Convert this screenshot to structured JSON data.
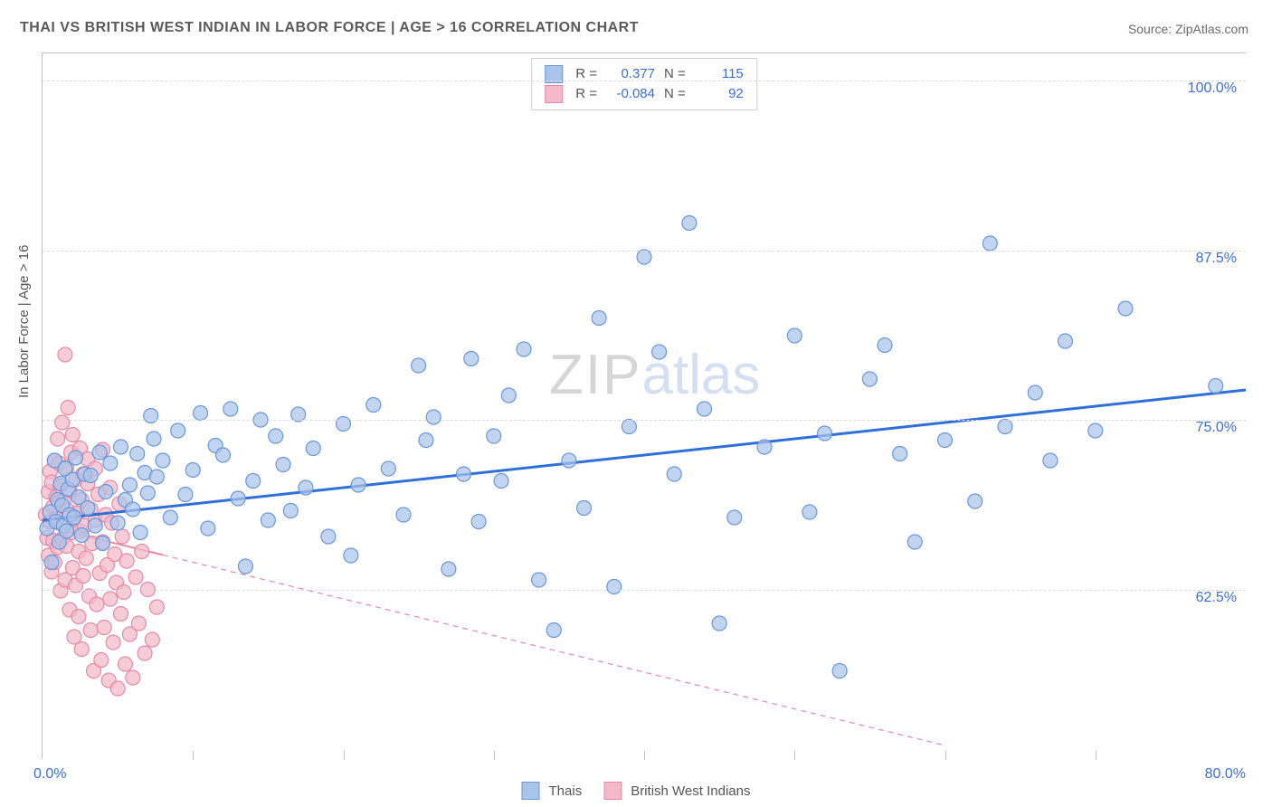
{
  "title": "THAI VS BRITISH WEST INDIAN IN LABOR FORCE | AGE > 16 CORRELATION CHART",
  "source": "Source: ZipAtlas.com",
  "watermark_zip": "ZIP",
  "watermark_atlas": "atlas",
  "yaxis_title": "In Labor Force | Age > 16",
  "chart": {
    "type": "scatter",
    "xlim": [
      0,
      80
    ],
    "ylim": [
      50,
      102
    ],
    "x_label_min": "0.0%",
    "x_label_max": "80.0%",
    "y_ticks": [
      62.5,
      75.0,
      87.5,
      100.0
    ],
    "y_tick_labels": [
      "62.5%",
      "75.0%",
      "87.5%",
      "100.0%"
    ],
    "x_ticks": [
      10,
      20,
      30,
      40,
      50,
      60,
      70
    ],
    "background_color": "#ffffff",
    "grid_color": "#dcdcdc",
    "series": [
      {
        "name": "Thais",
        "R": "0.377",
        "N": "115",
        "color_fill": "#a9c4ea",
        "color_stroke": "#6a97d8",
        "marker_radius": 8,
        "fill_opacity": 0.72,
        "trend_color": "#2f6fd8",
        "trend_width": 3,
        "trend_dash": "",
        "trend": {
          "x1": 0,
          "y1": 67.6,
          "x2": 80,
          "y2": 77.2
        },
        "points": [
          [
            0.3,
            67.0
          ],
          [
            0.5,
            68.2
          ],
          [
            0.6,
            64.5
          ],
          [
            0.8,
            72.0
          ],
          [
            0.9,
            67.5
          ],
          [
            1.0,
            69.1
          ],
          [
            1.1,
            66.0
          ],
          [
            1.2,
            70.3
          ],
          [
            1.3,
            68.7
          ],
          [
            1.4,
            67.2
          ],
          [
            1.5,
            71.4
          ],
          [
            1.6,
            66.8
          ],
          [
            1.7,
            69.9
          ],
          [
            1.8,
            68.0
          ],
          [
            2.0,
            70.6
          ],
          [
            2.1,
            67.8
          ],
          [
            2.2,
            72.2
          ],
          [
            2.4,
            69.3
          ],
          [
            2.6,
            66.5
          ],
          [
            2.8,
            71.0
          ],
          [
            3.0,
            68.5
          ],
          [
            3.2,
            70.9
          ],
          [
            3.5,
            67.2
          ],
          [
            3.8,
            72.6
          ],
          [
            4.0,
            65.9
          ],
          [
            4.2,
            69.7
          ],
          [
            4.5,
            71.8
          ],
          [
            5.0,
            67.4
          ],
          [
            5.2,
            73.0
          ],
          [
            5.5,
            69.1
          ],
          [
            5.8,
            70.2
          ],
          [
            6.0,
            68.4
          ],
          [
            6.3,
            72.5
          ],
          [
            6.5,
            66.7
          ],
          [
            6.8,
            71.1
          ],
          [
            7.0,
            69.6
          ],
          [
            7.2,
            75.3
          ],
          [
            7.4,
            73.6
          ],
          [
            7.6,
            70.8
          ],
          [
            8.0,
            72.0
          ],
          [
            8.5,
            67.8
          ],
          [
            9.0,
            74.2
          ],
          [
            9.5,
            69.5
          ],
          [
            10.0,
            71.3
          ],
          [
            10.5,
            75.5
          ],
          [
            11.0,
            67.0
          ],
          [
            11.5,
            73.1
          ],
          [
            12.0,
            72.4
          ],
          [
            12.5,
            75.8
          ],
          [
            13.0,
            69.2
          ],
          [
            13.5,
            64.2
          ],
          [
            14.0,
            70.5
          ],
          [
            14.5,
            75.0
          ],
          [
            15.0,
            67.6
          ],
          [
            15.5,
            73.8
          ],
          [
            16.0,
            71.7
          ],
          [
            16.5,
            68.3
          ],
          [
            17.0,
            75.4
          ],
          [
            17.5,
            70.0
          ],
          [
            18.0,
            72.9
          ],
          [
            19.0,
            66.4
          ],
          [
            20.0,
            74.7
          ],
          [
            20.5,
            65.0
          ],
          [
            21.0,
            70.2
          ],
          [
            22.0,
            76.1
          ],
          [
            23.0,
            71.4
          ],
          [
            24.0,
            68.0
          ],
          [
            25.0,
            79.0
          ],
          [
            25.5,
            73.5
          ],
          [
            26.0,
            75.2
          ],
          [
            27.0,
            64.0
          ],
          [
            28.0,
            71.0
          ],
          [
            28.5,
            79.5
          ],
          [
            29.0,
            67.5
          ],
          [
            30.0,
            73.8
          ],
          [
            30.5,
            70.5
          ],
          [
            31.0,
            76.8
          ],
          [
            32.0,
            80.2
          ],
          [
            33.0,
            63.2
          ],
          [
            34.0,
            59.5
          ],
          [
            35.0,
            72.0
          ],
          [
            36.0,
            68.5
          ],
          [
            37.0,
            82.5
          ],
          [
            38.0,
            62.7
          ],
          [
            39.0,
            74.5
          ],
          [
            40.0,
            87.0
          ],
          [
            41.0,
            80.0
          ],
          [
            42.0,
            71.0
          ],
          [
            43.0,
            89.5
          ],
          [
            44.0,
            75.8
          ],
          [
            45.0,
            60.0
          ],
          [
            46.0,
            67.8
          ],
          [
            48.0,
            73.0
          ],
          [
            50.0,
            81.2
          ],
          [
            51.0,
            68.2
          ],
          [
            52.0,
            74.0
          ],
          [
            53.0,
            56.5
          ],
          [
            55.0,
            78.0
          ],
          [
            56.0,
            80.5
          ],
          [
            57.0,
            72.5
          ],
          [
            58.0,
            66.0
          ],
          [
            60.0,
            73.5
          ],
          [
            62.0,
            69.0
          ],
          [
            63.0,
            88.0
          ],
          [
            64.0,
            74.5
          ],
          [
            66.0,
            77.0
          ],
          [
            67.0,
            72.0
          ],
          [
            68.0,
            80.8
          ],
          [
            70.0,
            74.2
          ],
          [
            72.0,
            83.2
          ],
          [
            78.0,
            77.5
          ]
        ]
      },
      {
        "name": "British West Indians",
        "R": "-0.084",
        "N": "92",
        "color_fill": "#f3b9ca",
        "color_stroke": "#e58aa6",
        "marker_radius": 8,
        "fill_opacity": 0.72,
        "trend_color": "#e88aa3",
        "trend_width": 2,
        "trend_dash": "6,5",
        "trend": {
          "x1": 0,
          "y1": 67.2,
          "x2": 60,
          "y2": 51.0
        },
        "trend_solid_to_x": 8,
        "points": [
          [
            0.2,
            68.0
          ],
          [
            0.3,
            66.3
          ],
          [
            0.4,
            69.7
          ],
          [
            0.4,
            65.0
          ],
          [
            0.5,
            71.2
          ],
          [
            0.5,
            67.5
          ],
          [
            0.6,
            63.8
          ],
          [
            0.6,
            70.4
          ],
          [
            0.7,
            68.6
          ],
          [
            0.7,
            66.1
          ],
          [
            0.8,
            72.0
          ],
          [
            0.8,
            64.5
          ],
          [
            0.9,
            69.3
          ],
          [
            0.9,
            67.7
          ],
          [
            1.0,
            65.6
          ],
          [
            1.0,
            73.6
          ],
          [
            1.1,
            71.8
          ],
          [
            1.1,
            68.9
          ],
          [
            1.2,
            62.4
          ],
          [
            1.2,
            70.1
          ],
          [
            1.3,
            66.2
          ],
          [
            1.3,
            74.8
          ],
          [
            1.4,
            69.0
          ],
          [
            1.4,
            67.3
          ],
          [
            1.5,
            79.8
          ],
          [
            1.5,
            63.2
          ],
          [
            1.6,
            71.5
          ],
          [
            1.6,
            65.7
          ],
          [
            1.7,
            68.3
          ],
          [
            1.7,
            75.9
          ],
          [
            1.8,
            61.0
          ],
          [
            1.8,
            69.8
          ],
          [
            1.9,
            66.7
          ],
          [
            1.9,
            72.6
          ],
          [
            2.0,
            64.1
          ],
          [
            2.0,
            73.9
          ],
          [
            2.1,
            59.0
          ],
          [
            2.1,
            67.9
          ],
          [
            2.2,
            70.6
          ],
          [
            2.2,
            62.8
          ],
          [
            2.3,
            68.1
          ],
          [
            2.4,
            65.3
          ],
          [
            2.4,
            60.5
          ],
          [
            2.5,
            72.9
          ],
          [
            2.5,
            66.8
          ],
          [
            2.6,
            58.1
          ],
          [
            2.6,
            69.1
          ],
          [
            2.7,
            63.5
          ],
          [
            2.7,
            71.0
          ],
          [
            2.8,
            67.2
          ],
          [
            2.9,
            64.8
          ],
          [
            3.0,
            70.3
          ],
          [
            3.0,
            72.1
          ],
          [
            3.1,
            62.0
          ],
          [
            3.2,
            68.4
          ],
          [
            3.2,
            59.5
          ],
          [
            3.3,
            65.9
          ],
          [
            3.4,
            56.5
          ],
          [
            3.5,
            71.4
          ],
          [
            3.5,
            67.6
          ],
          [
            3.6,
            61.4
          ],
          [
            3.7,
            69.5
          ],
          [
            3.8,
            63.7
          ],
          [
            3.9,
            57.3
          ],
          [
            4.0,
            66.0
          ],
          [
            4.0,
            72.8
          ],
          [
            4.1,
            59.7
          ],
          [
            4.2,
            68.0
          ],
          [
            4.3,
            64.3
          ],
          [
            4.4,
            55.8
          ],
          [
            4.5,
            70.0
          ],
          [
            4.5,
            61.8
          ],
          [
            4.6,
            67.4
          ],
          [
            4.7,
            58.6
          ],
          [
            4.8,
            65.1
          ],
          [
            4.9,
            63.0
          ],
          [
            5.0,
            55.2
          ],
          [
            5.1,
            68.8
          ],
          [
            5.2,
            60.7
          ],
          [
            5.3,
            66.4
          ],
          [
            5.4,
            62.3
          ],
          [
            5.5,
            57.0
          ],
          [
            5.6,
            64.6
          ],
          [
            5.8,
            59.2
          ],
          [
            6.0,
            56.0
          ],
          [
            6.2,
            63.4
          ],
          [
            6.4,
            60.0
          ],
          [
            6.6,
            65.3
          ],
          [
            6.8,
            57.8
          ],
          [
            7.0,
            62.5
          ],
          [
            7.3,
            58.8
          ],
          [
            7.6,
            61.2
          ]
        ]
      }
    ]
  },
  "legend_top_labels": {
    "R": "R =",
    "N": "N ="
  },
  "legend_bottom": [
    "Thais",
    "British West Indians"
  ]
}
